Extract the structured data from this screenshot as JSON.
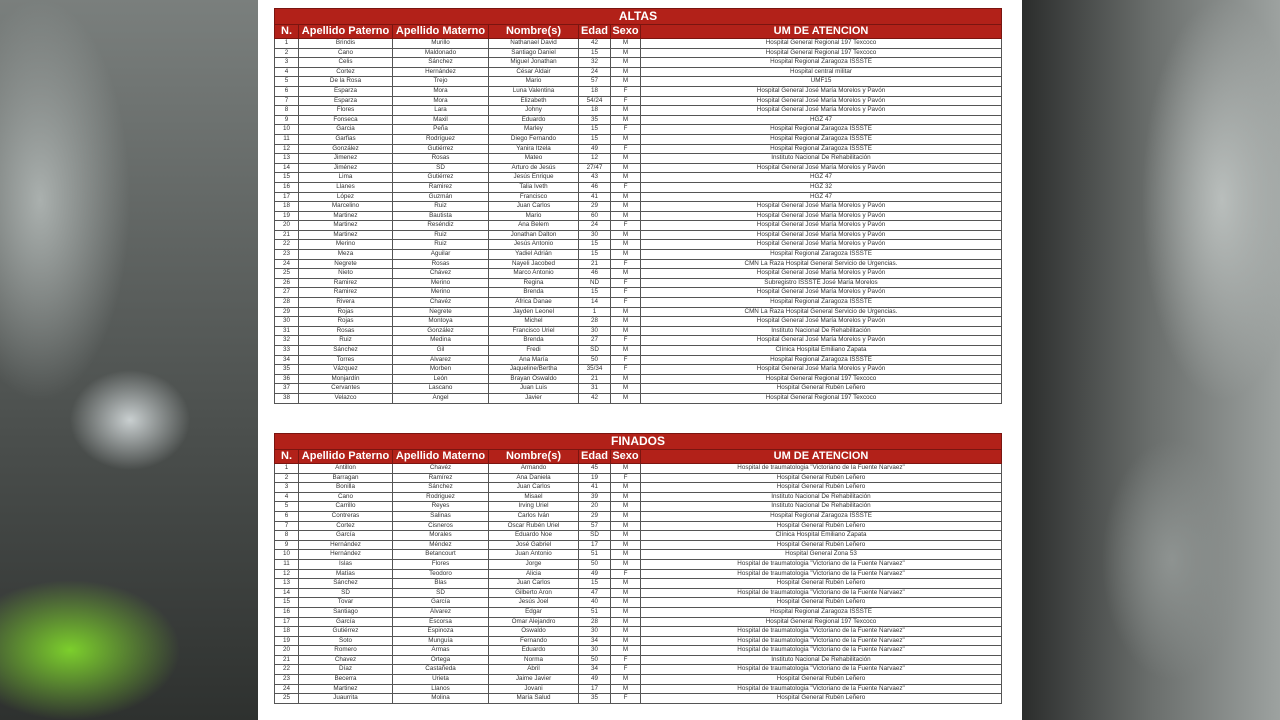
{
  "columns": [
    "N.",
    "Apellido Paterno",
    "Apellido Materno",
    "Nombre(s)",
    "Edad",
    "Sexo",
    "UM DE ATENCION"
  ],
  "colors": {
    "header_bg": "#b22119",
    "header_text": "#ffffff"
  },
  "altas": {
    "title": "ALTAS",
    "rows": [
      [
        "1",
        "Brindis",
        "Murillo",
        "Nathanael David",
        "42",
        "M",
        "Hospital General Regional 197 Texcoco"
      ],
      [
        "2",
        "Cano",
        "Maldonado",
        "Santiago Daniel",
        "15",
        "M",
        "Hospital General Regional 197 Texcoco"
      ],
      [
        "3",
        "Celis",
        "Sánchez",
        "Miguel Jonathan",
        "32",
        "M",
        "Hospital Regional Zaragoza ISSSTE"
      ],
      [
        "4",
        "Cortez",
        "Hernández",
        "César Aldair",
        "24",
        "M",
        "Hospital central militar"
      ],
      [
        "5",
        "De la Rosa",
        "Trejo",
        "Mario",
        "57",
        "M",
        "UMF15"
      ],
      [
        "6",
        "Esparza",
        "Mora",
        "Luna Valentina",
        "18",
        "F",
        "Hospital General José María Morelos y Pavón"
      ],
      [
        "7",
        "Esparza",
        "Mora",
        "Elizabeth",
        "54/24",
        "F",
        "Hospital General José María Morelos y Pavón"
      ],
      [
        "8",
        "Flores",
        "Lara",
        "Johny",
        "18",
        "M",
        "Hospital General José María Morelos y Pavón"
      ],
      [
        "9",
        "Fonseca",
        "Maxil",
        "Eduardo",
        "35",
        "M",
        "HGZ 47"
      ],
      [
        "10",
        "Garcia",
        "Peña",
        "Marley",
        "15",
        "F",
        "Hospital Regional Zaragoza ISSSTE"
      ],
      [
        "11",
        "Garfias",
        "Rodríguez",
        "Diego Fernando",
        "15",
        "M",
        "Hospital Regional Zaragoza ISSSTE"
      ],
      [
        "12",
        "González",
        "Gutiérrez",
        "Yanira Itzela",
        "49",
        "F",
        "Hospital Regional Zaragoza ISSSTE"
      ],
      [
        "13",
        "Jimenez",
        "Rosas",
        "Mateo",
        "12",
        "M",
        "Instituto Nacional De Rehabilitación"
      ],
      [
        "14",
        "Jiménez",
        "SD",
        "Arturo de Jesús",
        "27/47",
        "M",
        "Hospital General José María Morelos y Pavón"
      ],
      [
        "15",
        "Lima",
        "Gutiérrez",
        "Jesús Enrique",
        "43",
        "M",
        "HGZ 47"
      ],
      [
        "16",
        "Llanes",
        "Ramirez",
        "Talia Iveth",
        "46",
        "F",
        "HGZ 32"
      ],
      [
        "17",
        "López",
        "Guzmán",
        "Francisco",
        "41",
        "M",
        "HGZ 47"
      ],
      [
        "18",
        "Marcelino",
        "Ruiz",
        "Juan Carlos",
        "29",
        "M",
        "Hospital General José María Morelos y Pavón"
      ],
      [
        "19",
        "Martinez",
        "Bautista",
        "Mario",
        "60",
        "M",
        "Hospital General José María Morelos y Pavón"
      ],
      [
        "20",
        "Martinez",
        "Reséndiz",
        "Ana Belem",
        "24",
        "F",
        "Hospital General José María Morelos y Pavón"
      ],
      [
        "21",
        "Martinez",
        "Ruiz",
        "Jonathan Dalton",
        "30",
        "M",
        "Hospital General José María Morelos y Pavón"
      ],
      [
        "22",
        "Merino",
        "Ruiz",
        "Jesús Antonio",
        "15",
        "M",
        "Hospital General José María Morelos y Pavón"
      ],
      [
        "23",
        "Meza",
        "Aguilar",
        "Yadiel Adrián",
        "15",
        "M",
        "Hospital Regional Zaragoza ISSSTE"
      ],
      [
        "24",
        "Negrete",
        "Rosas",
        "Nayeli Jacobed",
        "21",
        "F",
        "CMN La Raza Hospital General Servicio de Urgencias."
      ],
      [
        "25",
        "Nieto",
        "Chávez",
        "Marco Antonio",
        "46",
        "M",
        "Hospital General José María Morelos y Pavón"
      ],
      [
        "26",
        "Ramirez",
        "Merino",
        "Regina",
        "ND",
        "F",
        "Subregistro ISSSTE José María Morelos"
      ],
      [
        "27",
        "Ramirez",
        "Merino",
        "Brenda",
        "15",
        "F",
        "Hospital General José María Morelos y Pavón"
      ],
      [
        "28",
        "Rivera",
        "Chavéz",
        "África Danae",
        "14",
        "F",
        "Hospital Regional Zaragoza ISSSTE"
      ],
      [
        "29",
        "Rojas",
        "Negrete",
        "Jayden Leonel",
        "1",
        "M",
        "CMN La Raza Hospital General Servicio de Urgencias."
      ],
      [
        "30",
        "Rojas",
        "Montoya",
        "Michel",
        "28",
        "M",
        "Hospital General José María Morelos y Pavón"
      ],
      [
        "31",
        "Rosas",
        "González",
        "Francisco Uriel",
        "30",
        "M",
        "Instituto Nacional De Rehabilitación"
      ],
      [
        "32",
        "Ruiz",
        "Medina",
        "Brenda",
        "27",
        "F",
        "Hospital General José María Morelos y Pavón"
      ],
      [
        "33",
        "Sánchez",
        "Gil",
        "Fredi",
        "SD",
        "M",
        "Clínica Hospital Emiliano Zapata"
      ],
      [
        "34",
        "Torres",
        "Alvarez",
        "Ana María",
        "50",
        "F",
        "Hospital Regional Zaragoza ISSSTE"
      ],
      [
        "35",
        "Vázquez",
        "Morben",
        "Jaqueline/Bertha",
        "35/34",
        "F",
        "Hospital General José María Morelos y Pavón"
      ],
      [
        "36",
        "Monjardín",
        "León",
        "Brayan Oswaldo",
        "21",
        "M",
        "Hospital General Regional 197 Texcoco"
      ],
      [
        "37",
        "Cervantes",
        "Lascano",
        "Juan Luis",
        "31",
        "M",
        "Hospital General Rubén Leñero"
      ],
      [
        "38",
        "Velazco",
        "Ángel",
        "Javier",
        "42",
        "M",
        "Hospital General Regional 197 Texcoco"
      ]
    ]
  },
  "finados": {
    "title": "FINADOS",
    "rows": [
      [
        "1",
        "Antillon",
        "Chavéz",
        "Armando",
        "45",
        "M",
        "Hospital de traumatologia \"Victoriano de la Fuente Narvaez\""
      ],
      [
        "2",
        "Barragan",
        "Ramírez",
        "Ana Daniela",
        "19",
        "F",
        "Hospital General Rubén Leñero"
      ],
      [
        "3",
        "Bonilla",
        "Sánchez",
        "Juan Carlos",
        "41",
        "M",
        "Hospital General Rubén Leñero"
      ],
      [
        "4",
        "Cano",
        "Rodriguez",
        "Misael",
        "39",
        "M",
        "Instituto Nacional De Rehabilitación"
      ],
      [
        "5",
        "Carrillo",
        "Reyes",
        "Irving Uriel",
        "20",
        "M",
        "Instituto Nacional De Rehabilitación"
      ],
      [
        "6",
        "Contreras",
        "Salinas",
        "Carlos Iván",
        "29",
        "M",
        "Hospital Regional Zaragoza ISSSTE"
      ],
      [
        "7",
        "Cortez",
        "Cisneros",
        "Oscar Rubén Uriel",
        "57",
        "M",
        "Hospital General Rubén Leñero"
      ],
      [
        "8",
        "García",
        "Morales",
        "Eduardo Noe",
        "SD",
        "M",
        "Clínica Hospital Emiliano Zapata"
      ],
      [
        "9",
        "Hernández",
        "Méndez",
        "José Gabriel",
        "17",
        "M",
        "Hospital General Rubén Leñero"
      ],
      [
        "10",
        "Hernández",
        "Betancourt",
        "Juan Antonio",
        "51",
        "M",
        "Hospital General Zona 53"
      ],
      [
        "11",
        "Islas",
        "Flores",
        "Jorge",
        "50",
        "M",
        "Hospital de traumatologia \"Victoriano de la Fuente Narvaez\""
      ],
      [
        "12",
        "Matías",
        "Teodoro",
        "Alicia",
        "49",
        "F",
        "Hospital de traumatologia \"Victoriano de la Fuente Narvaez\""
      ],
      [
        "13",
        "Sánchez",
        "Blas",
        "Juan Carlos",
        "15",
        "M",
        "Hospital General Rubén Leñero"
      ],
      [
        "14",
        "SD",
        "SD",
        "Gilberto Aron",
        "47",
        "M",
        "Hospital de traumatologia \"Victoriano de la Fuente Narvaez\""
      ],
      [
        "15",
        "Tovar",
        "García",
        "Jesús Joel",
        "40",
        "M",
        "Hospital General Rubén Leñero"
      ],
      [
        "16",
        "Santiago",
        "Álvarez",
        "Edgar",
        "51",
        "M",
        "Hospital Regional Zaragoza ISSSTE"
      ],
      [
        "17",
        "García",
        "Escorsa",
        "Omar Alejandro",
        "28",
        "M",
        "Hospital General Regional 197 Texcoco"
      ],
      [
        "18",
        "Gutiérrez",
        "Espinoza",
        "Oswaldo",
        "30",
        "M",
        "Hospital de traumatologia \"Victoriano de la Fuente Narvaez\""
      ],
      [
        "19",
        "Soto",
        "Munguía",
        "Fernando",
        "34",
        "M",
        "Hospital de traumatologia \"Victoriano de la Fuente Narvaez\""
      ],
      [
        "20",
        "Romero",
        "Armas",
        "Eduardo",
        "30",
        "M",
        "Hospital de traumatologia \"Victoriano de la Fuente Narvaez\""
      ],
      [
        "21",
        "Chavez",
        "Ortega",
        "Norma",
        "50",
        "F",
        "Instituto Nacional De Rehabilitación"
      ],
      [
        "22",
        "Díaz",
        "Castañeda",
        "Abril",
        "34",
        "F",
        "Hospital de traumatologia \"Victoriano de la Fuente Narvaez\""
      ],
      [
        "23",
        "Becerra",
        "Urieta",
        "Jaime Javier",
        "49",
        "M",
        "Hospital General Rubén Leñero"
      ],
      [
        "24",
        "Martinez",
        "Llanos",
        "Jovani",
        "17",
        "M",
        "Hospital de traumatologia \"Victoriano de la Fuente Narvaez\""
      ],
      [
        "25",
        "Juaurrita",
        "Molina",
        "María Salud",
        "35",
        "F",
        "Hospital General Rubén Leñero"
      ]
    ]
  }
}
